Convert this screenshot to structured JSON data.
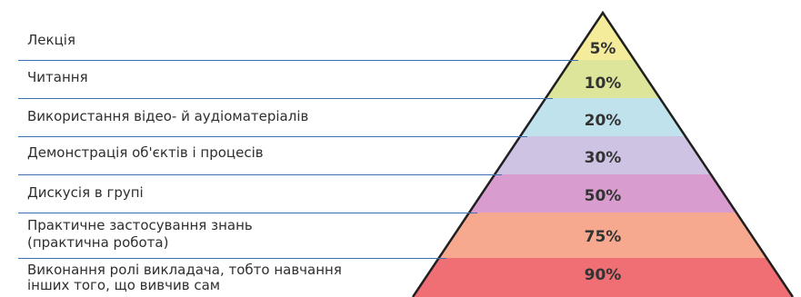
{
  "pyramid": {
    "levels": [
      {
        "label": "Лекція",
        "value": "5%",
        "color": "#f4ec9a"
      },
      {
        "label": "Читання",
        "value": "10%",
        "color": "#dde59a"
      },
      {
        "label": "Використання відео- й аудіоматеріалів",
        "value": "20%",
        "color": "#bfe2ec"
      },
      {
        "label": "Демонстрація об'єктів і процесів",
        "value": "30%",
        "color": "#cfc3e4"
      },
      {
        "label": "Дискусія в групі",
        "value": "50%",
        "color": "#d99ccf"
      },
      {
        "label": "Практичне застосування знань",
        "label2": "(практична робота)",
        "value": "75%",
        "color": "#f6a98f"
      },
      {
        "label": "Виконання ролі викладача, тобто навчання",
        "label2": "інших того, що вивчив сам",
        "value": "90%",
        "color": "#ef6f75"
      }
    ],
    "rule_color": "#3e6fb0"
  }
}
